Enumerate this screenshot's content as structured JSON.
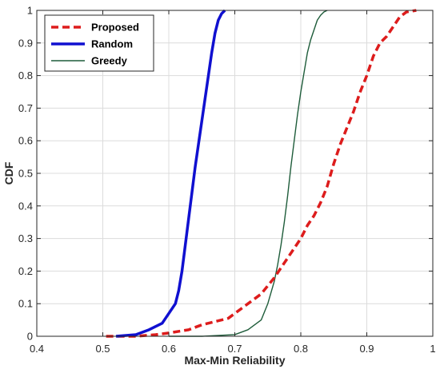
{
  "chart_data": {
    "type": "line",
    "title": "",
    "xlabel": "Max-Min Reliability",
    "ylabel": "CDF",
    "xlim": [
      0.4,
      1.0
    ],
    "ylim": [
      0,
      1
    ],
    "xticks": [
      "0.4",
      "0.5",
      "0.6",
      "0.7",
      "0.8",
      "0.9",
      "1"
    ],
    "yticks": [
      "0",
      "0.1",
      "0.2",
      "0.3",
      "0.4",
      "0.5",
      "0.6",
      "0.7",
      "0.8",
      "0.9",
      "1"
    ],
    "grid": true,
    "legend_position": "top-left",
    "series": [
      {
        "name": "Proposed",
        "color": "#dd1c1c",
        "line_style": "dashed",
        "x": [
          0.505,
          0.55,
          0.58,
          0.6,
          0.63,
          0.65,
          0.67,
          0.69,
          0.7,
          0.72,
          0.74,
          0.76,
          0.77,
          0.78,
          0.79,
          0.8,
          0.81,
          0.82,
          0.83,
          0.84,
          0.85,
          0.86,
          0.87,
          0.88,
          0.89,
          0.9,
          0.91,
          0.92,
          0.93,
          0.94,
          0.95,
          0.96,
          0.975
        ],
        "y": [
          0.0,
          0.0,
          0.005,
          0.01,
          0.02,
          0.035,
          0.045,
          0.055,
          0.07,
          0.1,
          0.13,
          0.18,
          0.21,
          0.24,
          0.27,
          0.3,
          0.34,
          0.37,
          0.41,
          0.46,
          0.53,
          0.59,
          0.64,
          0.69,
          0.75,
          0.8,
          0.86,
          0.9,
          0.92,
          0.95,
          0.98,
          0.995,
          1.0
        ]
      },
      {
        "name": "Random",
        "color": "#1010d0",
        "line_style": "solid",
        "x": [
          0.52,
          0.55,
          0.57,
          0.59,
          0.6,
          0.61,
          0.615,
          0.62,
          0.625,
          0.63,
          0.635,
          0.64,
          0.645,
          0.65,
          0.655,
          0.66,
          0.665,
          0.67,
          0.675,
          0.68,
          0.685
        ],
        "y": [
          0.0,
          0.005,
          0.02,
          0.04,
          0.07,
          0.1,
          0.14,
          0.2,
          0.28,
          0.36,
          0.44,
          0.52,
          0.59,
          0.66,
          0.73,
          0.8,
          0.87,
          0.93,
          0.97,
          0.99,
          1.0
        ]
      },
      {
        "name": "Greedy",
        "color": "#1e5c3a",
        "line_style": "solid",
        "x": [
          0.6,
          0.65,
          0.7,
          0.72,
          0.74,
          0.75,
          0.76,
          0.765,
          0.77,
          0.775,
          0.78,
          0.785,
          0.79,
          0.795,
          0.8,
          0.805,
          0.81,
          0.815,
          0.82,
          0.825,
          0.83,
          0.835,
          0.84
        ],
        "y": [
          0.0,
          0.0,
          0.005,
          0.02,
          0.05,
          0.1,
          0.17,
          0.22,
          0.28,
          0.35,
          0.43,
          0.52,
          0.6,
          0.68,
          0.75,
          0.81,
          0.87,
          0.91,
          0.94,
          0.97,
          0.985,
          0.995,
          1.0
        ]
      }
    ]
  }
}
